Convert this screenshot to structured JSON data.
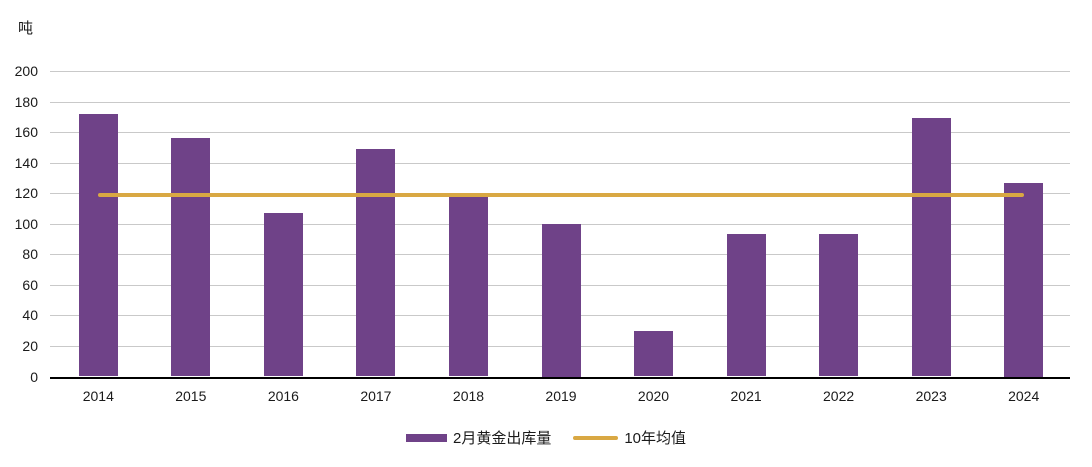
{
  "unit_label": "吨",
  "colors": {
    "bar": "#6F4288",
    "line": "#D9A843",
    "gridline": "#C9C9C9",
    "axis": "#000000",
    "text": "#1A1A1A"
  },
  "chart_data": {
    "type": "bar",
    "title": "",
    "unit": "吨",
    "categories": [
      "2014",
      "2015",
      "2016",
      "2017",
      "2018",
      "2019",
      "2020",
      "2021",
      "2022",
      "2023",
      "2024"
    ],
    "series": [
      {
        "name": "2月黄金出库量",
        "type": "bar",
        "color": "#6F4288",
        "values": [
          172,
          156,
          107,
          149,
          118,
          100,
          30,
          93,
          93,
          169,
          127
        ]
      },
      {
        "name": "10年均值",
        "type": "line",
        "color": "#D9A843",
        "value": 119
      }
    ],
    "xlabel": "",
    "ylabel": "吨",
    "ylim": [
      0,
      200
    ],
    "ytick_step": 20,
    "grid": true,
    "legend_position": "bottom"
  }
}
